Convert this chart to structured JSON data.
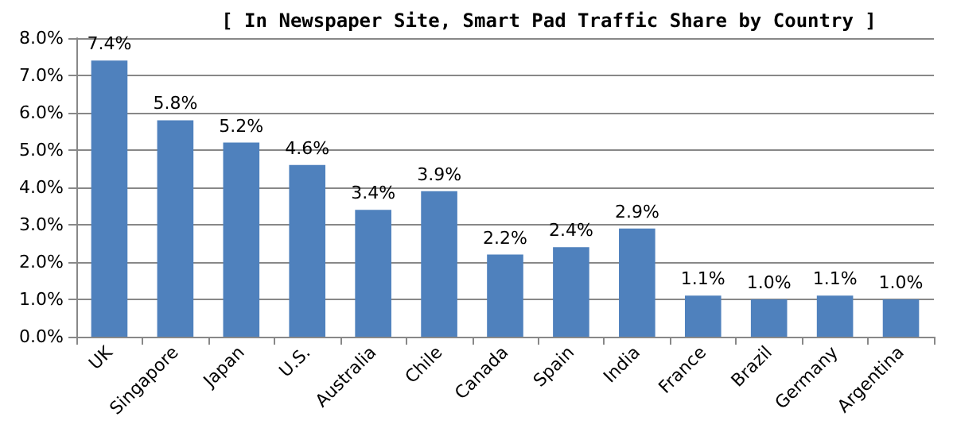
{
  "chart_data": {
    "type": "bar",
    "title": "[ In Newspaper Site, Smart Pad Traffic Share by Country ]",
    "categories": [
      "UK",
      "Singapore",
      "Japan",
      "U.S.",
      "Australia",
      "Chile",
      "Canada",
      "Spain",
      "India",
      "France",
      "Brazil",
      "Germany",
      "Argentina"
    ],
    "values": [
      7.4,
      5.8,
      5.2,
      4.6,
      3.4,
      3.9,
      2.2,
      2.4,
      2.9,
      1.1,
      1.0,
      1.1,
      1.0
    ],
    "value_labels": [
      "7.4%",
      "5.8%",
      "5.2%",
      "4.6%",
      "3.4%",
      "3.9%",
      "2.2%",
      "2.4%",
      "2.9%",
      "1.1%",
      "1.0%",
      "1.1%",
      "1.0%"
    ],
    "color": "#4f81bd",
    "ylim": [
      0,
      8
    ],
    "yticks": [
      {
        "value": 0,
        "label": "0.0%"
      },
      {
        "value": 1,
        "label": "1.0%"
      },
      {
        "value": 2,
        "label": "2.0%"
      },
      {
        "value": 3,
        "label": "3.0%"
      },
      {
        "value": 4,
        "label": "4.0%"
      },
      {
        "value": 5,
        "label": "5.0%"
      },
      {
        "value": 6,
        "label": "6.0%"
      },
      {
        "value": 7,
        "label": "7.0%"
      },
      {
        "value": 8,
        "label": "8.0%"
      }
    ],
    "grid": "y"
  }
}
